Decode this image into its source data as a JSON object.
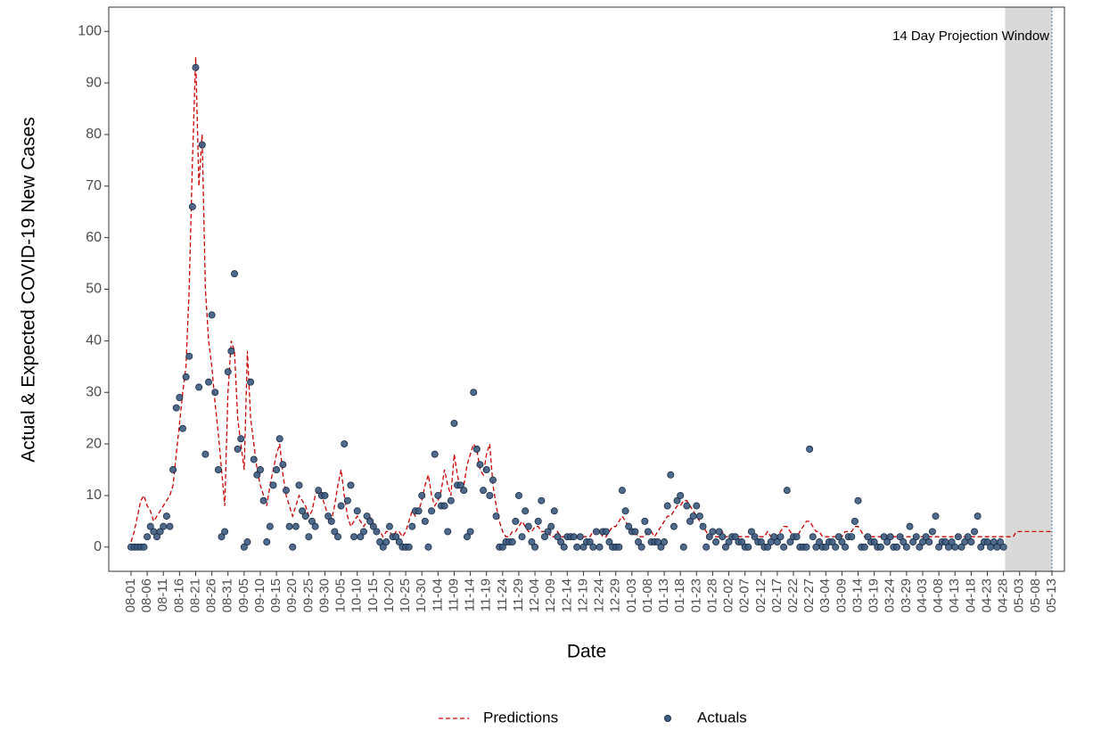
{
  "chart_data": {
    "type": "line",
    "y_label": "Actual & Expected COVID-19 New Cases",
    "x_label": "Date",
    "annotation": "14 Day Projection Window",
    "ylim": [
      -4.7,
      104.7
    ],
    "yticks": [
      0,
      10,
      20,
      30,
      40,
      50,
      60,
      70,
      80,
      90,
      100
    ],
    "categories": [
      "08-01",
      null,
      null,
      null,
      null,
      "08-06",
      null,
      null,
      null,
      null,
      "08-11",
      null,
      null,
      null,
      null,
      "08-16",
      null,
      null,
      null,
      null,
      "08-21",
      null,
      null,
      null,
      null,
      "08-26",
      null,
      null,
      null,
      null,
      "08-31",
      null,
      null,
      null,
      null,
      "09-05",
      null,
      null,
      null,
      null,
      "09-10",
      null,
      null,
      null,
      null,
      "09-15",
      null,
      null,
      null,
      null,
      "09-20",
      null,
      null,
      null,
      null,
      "09-25",
      null,
      null,
      null,
      null,
      "09-30",
      null,
      null,
      null,
      null,
      "10-05",
      null,
      null,
      null,
      null,
      "10-10",
      null,
      null,
      null,
      null,
      "10-15",
      null,
      null,
      null,
      null,
      "10-20",
      null,
      null,
      null,
      null,
      "10-25",
      null,
      null,
      null,
      null,
      "10-30",
      null,
      null,
      null,
      null,
      "11-04",
      null,
      null,
      null,
      null,
      "11-09",
      null,
      null,
      null,
      null,
      "11-14",
      null,
      null,
      null,
      null,
      "11-19",
      null,
      null,
      null,
      null,
      "11-24",
      null,
      null,
      null,
      null,
      "11-29",
      null,
      null,
      null,
      null,
      "12-04",
      null,
      null,
      null,
      null,
      "12-09",
      null,
      null,
      null,
      null,
      "12-14",
      null,
      null,
      null,
      null,
      "12-19",
      null,
      null,
      null,
      null,
      "12-24",
      null,
      null,
      null,
      null,
      "12-29",
      null,
      null,
      null,
      null,
      "01-03",
      null,
      null,
      null,
      null,
      "01-08",
      null,
      null,
      null,
      null,
      "01-13",
      null,
      null,
      null,
      null,
      "01-18",
      null,
      null,
      null,
      null,
      "01-23",
      null,
      null,
      null,
      null,
      "01-28",
      null,
      null,
      null,
      null,
      "02-02",
      null,
      null,
      null,
      null,
      "02-07",
      null,
      null,
      null,
      null,
      "02-12",
      null,
      null,
      null,
      null,
      "02-17",
      null,
      null,
      null,
      null,
      "02-22",
      null,
      null,
      null,
      null,
      "02-27",
      null,
      null,
      null,
      null,
      "03-04",
      null,
      null,
      null,
      null,
      "03-09",
      null,
      null,
      null,
      null,
      "03-14",
      null,
      null,
      null,
      null,
      "03-19",
      null,
      null,
      null,
      null,
      "03-24",
      null,
      null,
      null,
      null,
      "03-29",
      null,
      null,
      null,
      null,
      "04-03",
      null,
      null,
      null,
      null,
      "04-08",
      null,
      null,
      null,
      null,
      "04-13",
      null,
      null,
      null,
      null,
      "04-18",
      null,
      null,
      null,
      null,
      "04-23",
      null,
      null,
      null,
      null,
      "04-28",
      null,
      null,
      null,
      null,
      "05-03",
      null,
      null,
      null,
      null,
      "05-08",
      null,
      null,
      null,
      null,
      "05-13"
    ],
    "series": [
      {
        "name": "Predictions",
        "kind": "line",
        "color": "#cc0000",
        "values": [
          1,
          3,
          6,
          9,
          10,
          8,
          7,
          5,
          6,
          7,
          8,
          9,
          10,
          12,
          18,
          24,
          30,
          35,
          50,
          75,
          95,
          70,
          80,
          50,
          40,
          35,
          28,
          22,
          15,
          8,
          30,
          40,
          38,
          25,
          20,
          15,
          38,
          25,
          20,
          15,
          12,
          10,
          8,
          12,
          15,
          18,
          20,
          14,
          10,
          8,
          6,
          8,
          10,
          9,
          8,
          6,
          7,
          10,
          11,
          10,
          8,
          6,
          5,
          8,
          12,
          15,
          10,
          6,
          4,
          5,
          6,
          5,
          4,
          5,
          6,
          4,
          3,
          3,
          2,
          3,
          3,
          2,
          3,
          3,
          2,
          3,
          5,
          7,
          6,
          7,
          9,
          12,
          14,
          10,
          8,
          9,
          11,
          15,
          12,
          10,
          18,
          14,
          11,
          12,
          16,
          18,
          20,
          19,
          15,
          14,
          18,
          20,
          12,
          8,
          5,
          3,
          2,
          2,
          3,
          3,
          4,
          5,
          4,
          3,
          3,
          4,
          4,
          3,
          3,
          3,
          2,
          2,
          3,
          2,
          2,
          2,
          2,
          2,
          2,
          2,
          2,
          2,
          2,
          3,
          3,
          3,
          2,
          2,
          3,
          4,
          4,
          5,
          6,
          5,
          4,
          3,
          3,
          2,
          2,
          2,
          3,
          3,
          2,
          3,
          4,
          5,
          6,
          6,
          7,
          8,
          8,
          9,
          9,
          8,
          7,
          6,
          5,
          4,
          3,
          2,
          2,
          2,
          2,
          3,
          2,
          2,
          2,
          2,
          2,
          2,
          2,
          2,
          2,
          2,
          2,
          2,
          2,
          3,
          2,
          2,
          2,
          3,
          4,
          4,
          3,
          2,
          2,
          3,
          4,
          5,
          5,
          4,
          3,
          3,
          2,
          2,
          2,
          2,
          2,
          2,
          2,
          3,
          3,
          3,
          4,
          4,
          3,
          2,
          2,
          2,
          2,
          2,
          2,
          2,
          2,
          2,
          2,
          2,
          2,
          2,
          2,
          2,
          2,
          2,
          2,
          2,
          2,
          2,
          2,
          2,
          2,
          2,
          2,
          2,
          2,
          2,
          2,
          2,
          2,
          2,
          2,
          2,
          2,
          2,
          2,
          2,
          2,
          2,
          2,
          2,
          2,
          2,
          2,
          2,
          3,
          3,
          3,
          3,
          3,
          3,
          3,
          3,
          3,
          3,
          3,
          3
        ]
      },
      {
        "name": "Actuals",
        "kind": "scatter",
        "color": "#3b5b82",
        "values": [
          0,
          0,
          0,
          0,
          0,
          2,
          4,
          3,
          2,
          3,
          4,
          6,
          4,
          15,
          27,
          29,
          23,
          33,
          37,
          66,
          93,
          31,
          78,
          18,
          32,
          45,
          30,
          15,
          2,
          3,
          34,
          38,
          53,
          19,
          21,
          0,
          1,
          32,
          17,
          14,
          15,
          9,
          1,
          4,
          12,
          15,
          21,
          16,
          11,
          4,
          0,
          4,
          12,
          7,
          6,
          2,
          5,
          4,
          11,
          10,
          10,
          6,
          5,
          3,
          2,
          8,
          20,
          9,
          12,
          2,
          7,
          2,
          3,
          6,
          5,
          4,
          3,
          1,
          0,
          1,
          4,
          2,
          2,
          1,
          0,
          0,
          0,
          4,
          7,
          7,
          10,
          5,
          0,
          7,
          18,
          10,
          8,
          8,
          3,
          9,
          24,
          12,
          12,
          11,
          2,
          3,
          30,
          19,
          16,
          11,
          15,
          10,
          13,
          6,
          0,
          0,
          1,
          1,
          1,
          5,
          10,
          2,
          7,
          4,
          1,
          0,
          5,
          9,
          2,
          3,
          4,
          7,
          2,
          1,
          0,
          2,
          2,
          2,
          0,
          2,
          0,
          1,
          1,
          0,
          3,
          0,
          3,
          3,
          1,
          0,
          0,
          0,
          11,
          7,
          4,
          3,
          3,
          1,
          0,
          5,
          3,
          1,
          1,
          1,
          0,
          1,
          8,
          14,
          4,
          9,
          10,
          0,
          8,
          5,
          6,
          8,
          6,
          4,
          0,
          2,
          3,
          1,
          3,
          2,
          0,
          1,
          2,
          2,
          1,
          1,
          0,
          0,
          3,
          2,
          1,
          1,
          0,
          0,
          1,
          2,
          1,
          2,
          0,
          11,
          1,
          2,
          2,
          0,
          0,
          0,
          19,
          2,
          0,
          1,
          0,
          0,
          1,
          1,
          0,
          2,
          1,
          0,
          2,
          2,
          5,
          9,
          0,
          0,
          2,
          1,
          1,
          0,
          0,
          2,
          1,
          2,
          0,
          0,
          2,
          1,
          0,
          4,
          1,
          2,
          0,
          1,
          2,
          1,
          3,
          6,
          0,
          1,
          1,
          0,
          1,
          0,
          2,
          0,
          1,
          2,
          1,
          3,
          6,
          0,
          1,
          1,
          0,
          1,
          0,
          1,
          0,
          null,
          null,
          null,
          null,
          null,
          null,
          null,
          null,
          null,
          null,
          null,
          null,
          null,
          null,
          null
        ]
      }
    ]
  }
}
